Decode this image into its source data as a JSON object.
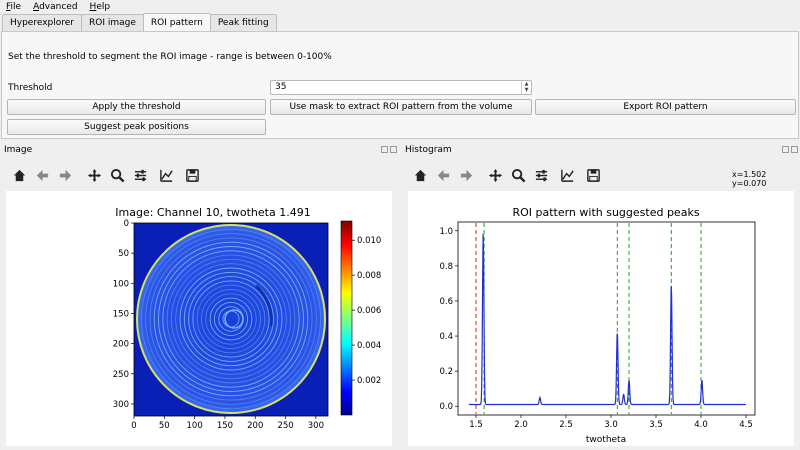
{
  "menu": [
    "File",
    "Advanced",
    "Help"
  ],
  "tabs": [
    "Hyperexplorer",
    "ROI image",
    "ROI pattern",
    "Peak fitting"
  ],
  "active_tab": "ROI pattern",
  "roi": {
    "description": "Set the threshold to segment the ROI image - range is between 0-100%",
    "threshold_label": "Threshold",
    "threshold_value": "35",
    "apply_button": "Apply the threshold",
    "mask_button": "Use mask to extract ROI pattern from the volume",
    "export_button": "Export ROI pattern",
    "suggest_button": "Suggest peak positions"
  },
  "image_dock": {
    "title": "Image"
  },
  "histogram_dock": {
    "title": "Histogram",
    "coords": "x=1.502 y=0.070"
  },
  "toolbar_icons": [
    "home-icon",
    "back-arrow-icon",
    "forward-arrow-icon",
    "pan-icon",
    "zoom-icon",
    "configure-subplots-icon",
    "edit-axis-icon",
    "save-icon"
  ],
  "image_plot": {
    "title": "Image: Channel 10, twotheta 1.491",
    "x_ticks": [
      "0",
      "50",
      "100",
      "150",
      "200",
      "250",
      "300"
    ],
    "y_ticks": [
      "0",
      "50",
      "100",
      "150",
      "200",
      "250",
      "300"
    ],
    "colorbar_ticks": [
      "0.002",
      "0.004",
      "0.006",
      "0.008",
      "0.010"
    ],
    "colormap": "jet"
  },
  "chart_data": {
    "type": "line",
    "title": "ROI pattern with suggested peaks",
    "xlabel": "twotheta",
    "ylabel": "",
    "xlim": [
      1.3,
      4.6
    ],
    "ylim": [
      -0.05,
      1.05
    ],
    "x_ticks": [
      "1.5",
      "2.0",
      "2.5",
      "3.0",
      "3.5",
      "4.0",
      "4.5"
    ],
    "y_ticks": [
      "0.0",
      "0.2",
      "0.4",
      "0.6",
      "0.8",
      "1.0"
    ],
    "series": [
      {
        "color": "#1f2fd0",
        "peaks": [
          {
            "x": 1.58,
            "height": 0.98
          },
          {
            "x": 2.21,
            "height": 0.04
          },
          {
            "x": 3.07,
            "height": 0.42
          },
          {
            "x": 3.14,
            "height": 0.06
          },
          {
            "x": 3.2,
            "height": 0.14
          },
          {
            "x": 3.67,
            "height": 0.69
          },
          {
            "x": 4.01,
            "height": 0.14
          }
        ],
        "baseline": 0.01
      }
    ],
    "suggested_peaks": [
      1.5,
      1.59,
      3.07,
      3.2,
      3.67,
      4.0
    ],
    "marker_colors": [
      "#e02020",
      "#20a020",
      "#20a020",
      "#20a020",
      "#20a020",
      "#20a020"
    ]
  }
}
